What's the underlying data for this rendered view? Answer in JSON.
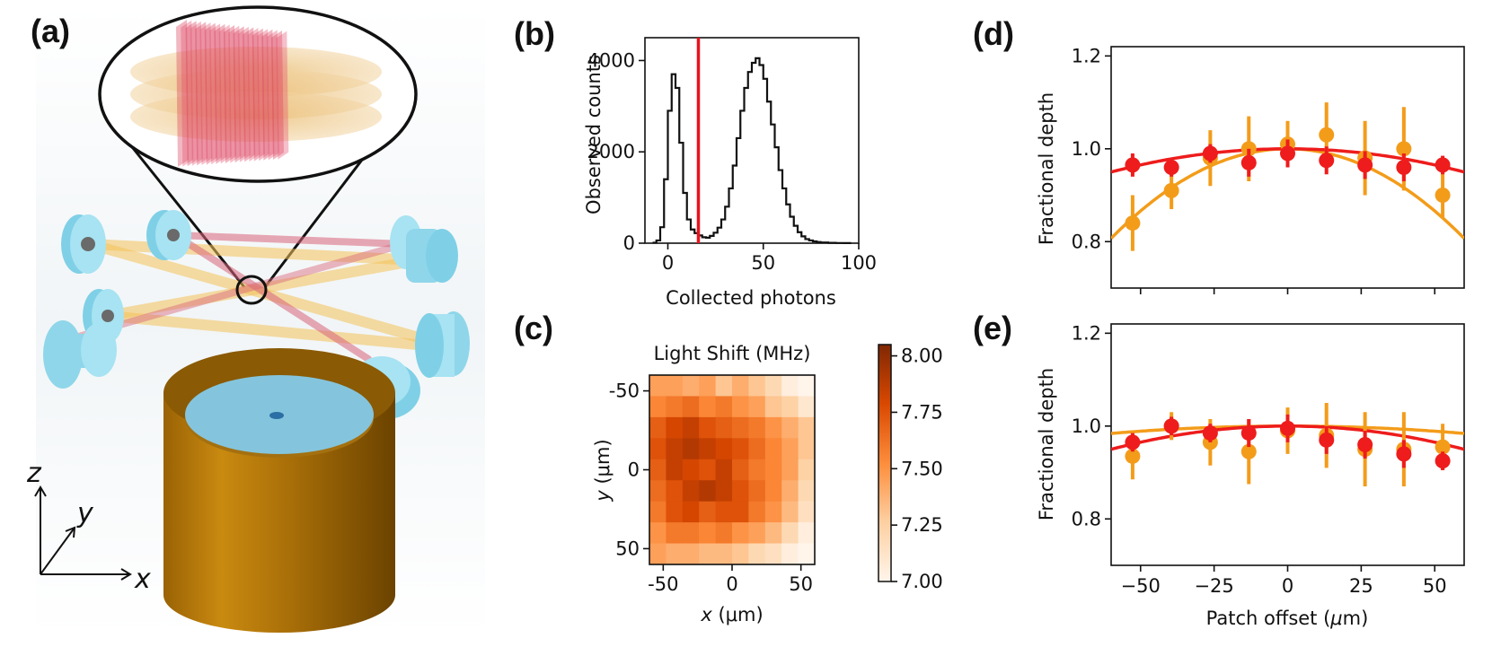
{
  "panels": {
    "a": {
      "label": "(a)",
      "axes": {
        "z": "z",
        "y": "y",
        "x": "x"
      }
    },
    "b": {
      "label": "(b)"
    },
    "c": {
      "label": "(c)"
    },
    "d": {
      "label": "(d)"
    },
    "e": {
      "label": "(e)"
    }
  },
  "chart_data": [
    {
      "panel": "b",
      "type": "line",
      "xlabel": "Collected photons",
      "ylabel": "Observed counts",
      "xlim": [
        -12,
        100
      ],
      "ylim": [
        0,
        4500
      ],
      "xticks": [
        0,
        50,
        100
      ],
      "yticks": [
        0,
        2000,
        4000
      ],
      "threshold_x": 16,
      "threshold_color": "#e8141b",
      "series": [
        {
          "color": "#111111",
          "x": [
            -8,
            -6,
            -4,
            -2,
            0,
            2,
            4,
            6,
            8,
            10,
            12,
            14,
            16,
            18,
            20,
            22,
            24,
            26,
            28,
            30,
            32,
            34,
            36,
            38,
            40,
            42,
            44,
            46,
            48,
            50,
            52,
            54,
            56,
            58,
            60,
            62,
            64,
            66,
            68,
            70,
            72,
            74,
            76,
            78,
            80,
            84,
            88,
            92,
            96
          ],
          "y": [
            10,
            60,
            350,
            1400,
            2900,
            3700,
            3400,
            2200,
            1100,
            520,
            300,
            220,
            170,
            130,
            120,
            160,
            230,
            340,
            520,
            800,
            1200,
            1700,
            2300,
            2900,
            3400,
            3750,
            3950,
            4050,
            3900,
            3600,
            3100,
            2600,
            2100,
            1600,
            1200,
            850,
            580,
            380,
            240,
            150,
            90,
            60,
            40,
            25,
            15,
            8,
            4,
            2,
            0
          ]
        }
      ]
    },
    {
      "panel": "c",
      "type": "heatmap",
      "title": "Light Shift (MHz)",
      "xlabel": "x (μm)",
      "ylabel": "y (μm)",
      "xticks": [
        -50,
        0,
        50
      ],
      "yticks": [
        -50,
        0,
        50
      ],
      "colorbar_ticks": [
        "7.00",
        "7.25",
        "7.50",
        "7.75",
        "8.00"
      ],
      "colorbar_range": [
        7.0,
        8.05
      ],
      "values": [
        [
          7.45,
          7.45,
          7.4,
          7.45,
          7.3,
          7.4,
          7.3,
          7.2,
          7.05,
          7.0
        ],
        [
          7.55,
          7.6,
          7.65,
          7.55,
          7.6,
          7.5,
          7.45,
          7.3,
          7.25,
          7.1
        ],
        [
          7.7,
          7.8,
          7.85,
          7.75,
          7.7,
          7.65,
          7.6,
          7.5,
          7.4,
          7.3
        ],
        [
          7.75,
          7.85,
          7.9,
          7.85,
          7.8,
          7.75,
          7.65,
          7.55,
          7.45,
          7.3
        ],
        [
          7.7,
          7.85,
          7.8,
          7.75,
          7.85,
          7.7,
          7.6,
          7.55,
          7.45,
          7.25
        ],
        [
          7.65,
          7.75,
          7.85,
          7.9,
          7.85,
          7.75,
          7.65,
          7.55,
          7.4,
          7.2
        ],
        [
          7.6,
          7.75,
          7.8,
          7.7,
          7.75,
          7.75,
          7.6,
          7.5,
          7.35,
          7.15
        ],
        [
          7.5,
          7.6,
          7.6,
          7.55,
          7.6,
          7.5,
          7.45,
          7.35,
          7.2,
          7.05
        ],
        [
          7.45,
          7.4,
          7.4,
          7.35,
          7.35,
          7.3,
          7.2,
          7.15,
          7.05,
          7.0
        ]
      ]
    },
    {
      "panel": "d",
      "type": "scatter",
      "xlabel": "",
      "ylabel": "Fractional depth",
      "xlim": [
        -60,
        60
      ],
      "ylim": [
        0.7,
        1.22
      ],
      "xticks": [
        -50,
        -25,
        0,
        25,
        50
      ],
      "yticks": [
        "0.8",
        "1.0",
        "1.2"
      ],
      "x": [
        -52.7,
        -39.5,
        -26.3,
        -13.2,
        0,
        13.2,
        26.3,
        39.5,
        52.7
      ],
      "series": [
        {
          "color": "#f39c1a",
          "values": [
            0.84,
            0.91,
            0.98,
            1.0,
            1.01,
            1.03,
            0.98,
            1.0,
            0.9
          ],
          "errors": [
            0.06,
            0.04,
            0.06,
            0.07,
            0.05,
            0.07,
            0.08,
            0.09,
            0.05
          ],
          "fit_curvature": 5.36e-05
        },
        {
          "color": "#ee1c1c",
          "values": [
            0.965,
            0.96,
            0.99,
            0.97,
            0.99,
            0.975,
            0.965,
            0.96,
            0.965
          ],
          "errors": [
            0.025,
            0.02,
            0.02,
            0.03,
            0.03,
            0.03,
            0.03,
            0.03,
            0.02
          ],
          "fit_curvature": 1.39e-05
        }
      ]
    },
    {
      "panel": "e",
      "type": "scatter",
      "xlabel": "Patch offset (μm)",
      "ylabel": "Fractional depth",
      "xlim": [
        -60,
        60
      ],
      "ylim": [
        0.7,
        1.22
      ],
      "xticks": [
        "−50",
        "−25",
        "0",
        "25",
        "50"
      ],
      "yticks": [
        "0.8",
        "1.0",
        "1.2"
      ],
      "x": [
        -52.7,
        -39.5,
        -26.3,
        -13.2,
        0,
        13.2,
        26.3,
        39.5,
        52.7
      ],
      "series": [
        {
          "color": "#f39c1a",
          "values": [
            0.935,
            1.0,
            0.965,
            0.945,
            0.99,
            0.98,
            0.95,
            0.95,
            0.955
          ],
          "errors": [
            0.05,
            0.03,
            0.05,
            0.07,
            0.05,
            0.07,
            0.08,
            0.08,
            0.05
          ],
          "fit_curvature": 4.4e-06
        },
        {
          "color": "#ee1c1c",
          "values": [
            0.965,
            1.0,
            0.985,
            0.985,
            0.995,
            0.97,
            0.96,
            0.94,
            0.925
          ],
          "errors": [
            0.02,
            0.02,
            0.02,
            0.03,
            0.03,
            0.03,
            0.03,
            0.03,
            0.02
          ],
          "fit_curvature": 1.39e-05
        }
      ]
    }
  ]
}
